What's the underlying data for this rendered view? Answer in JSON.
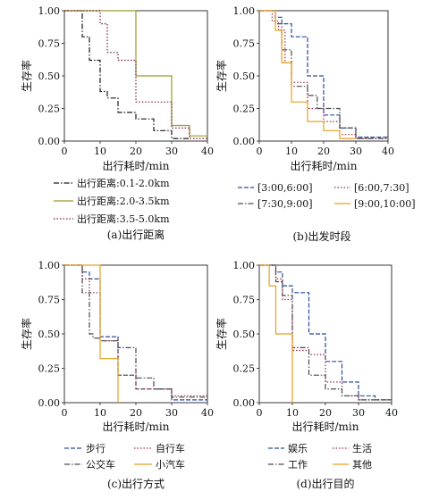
{
  "chart_data": [
    {
      "type": "line",
      "caption": "(a)出行距离",
      "xlabel": "出行耗时/min",
      "ylabel": "生存率",
      "xlim": [
        0,
        40
      ],
      "ylim": [
        0,
        1
      ],
      "xticks": [
        0,
        10,
        20,
        30,
        40
      ],
      "yticks": [
        "0.00",
        "0.25",
        "0.50",
        "0.75",
        "1.00"
      ],
      "legend": "below",
      "series": [
        {
          "name": "出行距离:0.1-2.0km",
          "color": "#1a1a1a",
          "dash": "6,2,1.5,2",
          "points": [
            [
              0,
              1
            ],
            [
              5,
              1
            ],
            [
              5,
              0.8
            ],
            [
              7,
              0.8
            ],
            [
              7,
              0.62
            ],
            [
              10,
              0.62
            ],
            [
              10,
              0.38
            ],
            [
              12,
              0.38
            ],
            [
              12,
              0.33
            ],
            [
              15,
              0.33
            ],
            [
              15,
              0.22
            ],
            [
              20,
              0.22
            ],
            [
              20,
              0.17
            ],
            [
              25,
              0.17
            ],
            [
              25,
              0.08
            ],
            [
              30,
              0.08
            ],
            [
              30,
              0.02
            ],
            [
              35,
              0.02
            ]
          ]
        },
        {
          "name": "出行距离:2.0-3.5km",
          "color": "#9a9a2a",
          "dash": "",
          "points": [
            [
              0,
              1
            ],
            [
              20,
              1
            ],
            [
              20,
              0.5
            ],
            [
              30,
              0.5
            ],
            [
              30,
              0.12
            ],
            [
              35,
              0.12
            ],
            [
              35,
              0.04
            ],
            [
              40,
              0.04
            ]
          ]
        },
        {
          "name": "出行距离:3.5-5.0km",
          "color": "#7a1a3a",
          "dash": "1.5,2",
          "points": [
            [
              0,
              1
            ],
            [
              10,
              1
            ],
            [
              10,
              0.9
            ],
            [
              12,
              0.9
            ],
            [
              12,
              0.68
            ],
            [
              15,
              0.68
            ],
            [
              15,
              0.62
            ],
            [
              20,
              0.62
            ],
            [
              20,
              0.3
            ],
            [
              30,
              0.3
            ],
            [
              30,
              0.1
            ],
            [
              35,
              0.1
            ],
            [
              35,
              0.02
            ],
            [
              40,
              0.02
            ]
          ]
        }
      ]
    },
    {
      "type": "line",
      "caption": "(b)出发时段",
      "xlabel": "出行耗时/min",
      "ylabel": "生存率",
      "xlim": [
        0,
        40
      ],
      "ylim": [
        0,
        1
      ],
      "xticks": [
        0,
        10,
        20,
        30,
        40
      ],
      "yticks": [
        "0.00",
        "0.25",
        "0.50",
        "0.75",
        "1.00"
      ],
      "legend": "below",
      "series": [
        {
          "name": "[3:00,6:00]",
          "color": "#2a4a9a",
          "dash": "5,2",
          "points": [
            [
              0,
              1
            ],
            [
              5,
              1
            ],
            [
              5,
              0.95
            ],
            [
              7,
              0.95
            ],
            [
              7,
              0.9
            ],
            [
              10,
              0.9
            ],
            [
              10,
              0.8
            ],
            [
              15,
              0.8
            ],
            [
              15,
              0.5
            ],
            [
              20,
              0.5
            ],
            [
              20,
              0.2
            ],
            [
              25,
              0.2
            ],
            [
              25,
              0.1
            ],
            [
              30,
              0.1
            ],
            [
              30,
              0.03
            ],
            [
              40,
              0.03
            ]
          ]
        },
        {
          "name": "[6:00,7:30]",
          "color": "#9a2a4a",
          "dash": "1.5,2",
          "points": [
            [
              0,
              1
            ],
            [
              4,
              1
            ],
            [
              4,
              0.92
            ],
            [
              6,
              0.92
            ],
            [
              6,
              0.85
            ],
            [
              8,
              0.85
            ],
            [
              8,
              0.6
            ],
            [
              10,
              0.6
            ],
            [
              10,
              0.45
            ],
            [
              15,
              0.45
            ],
            [
              15,
              0.25
            ],
            [
              20,
              0.25
            ],
            [
              20,
              0.15
            ],
            [
              25,
              0.15
            ],
            [
              25,
              0.05
            ],
            [
              30,
              0.05
            ],
            [
              30,
              0.02
            ],
            [
              40,
              0.02
            ]
          ]
        },
        {
          "name": "[7:30,9:00]",
          "color": "#4a4a4a",
          "dash": "6,2,1.5,2",
          "points": [
            [
              0,
              1
            ],
            [
              5,
              1
            ],
            [
              5,
              0.9
            ],
            [
              7,
              0.9
            ],
            [
              7,
              0.7
            ],
            [
              10,
              0.7
            ],
            [
              10,
              0.42
            ],
            [
              15,
              0.42
            ],
            [
              15,
              0.35
            ],
            [
              18,
              0.35
            ],
            [
              18,
              0.25
            ],
            [
              25,
              0.25
            ],
            [
              25,
              0.1
            ],
            [
              30,
              0.1
            ],
            [
              30,
              0.02
            ],
            [
              40,
              0.02
            ]
          ]
        },
        {
          "name": "[9:00,10:00]",
          "color": "#e8a020",
          "dash": "",
          "points": [
            [
              0,
              1
            ],
            [
              5,
              1
            ],
            [
              5,
              0.85
            ],
            [
              7,
              0.85
            ],
            [
              7,
              0.6
            ],
            [
              10,
              0.6
            ],
            [
              10,
              0.3
            ],
            [
              15,
              0.3
            ],
            [
              15,
              0.15
            ],
            [
              20,
              0.15
            ],
            [
              20,
              0.08
            ],
            [
              25,
              0.08
            ],
            [
              25,
              0.02
            ],
            [
              30,
              0.02
            ]
          ]
        }
      ]
    },
    {
      "type": "line",
      "caption": "(c)出行方式",
      "xlabel": "出行耗时/min",
      "ylabel": "生存率",
      "xlim": [
        0,
        40
      ],
      "ylim": [
        0,
        1
      ],
      "xticks": [
        0,
        10,
        20,
        30,
        40
      ],
      "yticks": [
        "0.00",
        "0.25",
        "0.50",
        "0.75",
        "1.00"
      ],
      "legend": "below",
      "series": [
        {
          "name": "步行",
          "color": "#2a4a9a",
          "dash": "5,2",
          "points": [
            [
              0,
              1
            ],
            [
              5,
              1
            ],
            [
              5,
              0.95
            ],
            [
              7,
              0.95
            ],
            [
              7,
              0.9
            ],
            [
              10,
              0.9
            ],
            [
              10,
              0.48
            ],
            [
              15,
              0.48
            ],
            [
              15,
              0.2
            ],
            [
              20,
              0.2
            ],
            [
              20,
              0.1
            ],
            [
              30,
              0.1
            ],
            [
              30,
              0.02
            ],
            [
              40,
              0.02
            ]
          ]
        },
        {
          "name": "自行车",
          "color": "#9a2a4a",
          "dash": "1.5,2",
          "points": [
            [
              0,
              1
            ],
            [
              5,
              1
            ],
            [
              5,
              0.9
            ],
            [
              7,
              0.9
            ],
            [
              7,
              0.8
            ],
            [
              10,
              0.8
            ],
            [
              10,
              0.45
            ],
            [
              15,
              0.45
            ],
            [
              15,
              0.2
            ],
            [
              20,
              0.2
            ],
            [
              20,
              0.1
            ],
            [
              30,
              0.1
            ],
            [
              30,
              0.05
            ],
            [
              40,
              0.05
            ]
          ]
        },
        {
          "name": "公交车",
          "color": "#4a4a4a",
          "dash": "6,2,1.5,2",
          "points": [
            [
              0,
              1
            ],
            [
              5,
              1
            ],
            [
              5,
              0.8
            ],
            [
              7,
              0.8
            ],
            [
              7,
              0.5
            ],
            [
              8,
              0.5
            ],
            [
              8,
              0.47
            ],
            [
              10,
              0.47
            ],
            [
              10,
              0.45
            ],
            [
              15,
              0.45
            ],
            [
              15,
              0.4
            ],
            [
              20,
              0.4
            ],
            [
              20,
              0.18
            ],
            [
              25,
              0.18
            ],
            [
              25,
              0.1
            ],
            [
              30,
              0.1
            ],
            [
              30,
              0.04
            ],
            [
              40,
              0.04
            ]
          ]
        },
        {
          "name": "小汽车",
          "color": "#e8a020",
          "dash": "",
          "points": [
            [
              0,
              1
            ],
            [
              10,
              1
            ],
            [
              10,
              0.32
            ],
            [
              15,
              0.32
            ],
            [
              15,
              0.0
            ]
          ]
        }
      ]
    },
    {
      "type": "line",
      "caption": "(d)出行目的",
      "xlabel": "出行耗时/min",
      "ylabel": "生存率",
      "xlim": [
        0,
        40
      ],
      "ylim": [
        0,
        1
      ],
      "xticks": [
        0,
        10,
        20,
        30,
        40
      ],
      "yticks": [
        "0.00",
        "0.25",
        "0.50",
        "0.75",
        "1.00"
      ],
      "legend": "below",
      "series": [
        {
          "name": "娱乐",
          "color": "#2a4a9a",
          "dash": "5,2",
          "points": [
            [
              0,
              1
            ],
            [
              5,
              1
            ],
            [
              5,
              0.95
            ],
            [
              7,
              0.95
            ],
            [
              7,
              0.85
            ],
            [
              10,
              0.85
            ],
            [
              10,
              0.8
            ],
            [
              15,
              0.8
            ],
            [
              15,
              0.5
            ],
            [
              20,
              0.5
            ],
            [
              20,
              0.3
            ],
            [
              25,
              0.3
            ],
            [
              25,
              0.15
            ],
            [
              30,
              0.15
            ],
            [
              30,
              0.05
            ],
            [
              35,
              0.05
            ],
            [
              35,
              0.02
            ],
            [
              40,
              0.02
            ]
          ]
        },
        {
          "name": "生活",
          "color": "#9a2a4a",
          "dash": "1.5,2",
          "points": [
            [
              0,
              1
            ],
            [
              5,
              1
            ],
            [
              5,
              0.9
            ],
            [
              7,
              0.9
            ],
            [
              7,
              0.75
            ],
            [
              10,
              0.75
            ],
            [
              10,
              0.38
            ],
            [
              15,
              0.38
            ],
            [
              15,
              0.35
            ],
            [
              20,
              0.35
            ],
            [
              20,
              0.15
            ],
            [
              25,
              0.15
            ],
            [
              25,
              0.05
            ],
            [
              30,
              0.05
            ],
            [
              30,
              0.02
            ],
            [
              40,
              0.02
            ]
          ]
        },
        {
          "name": "工作",
          "color": "#4a4a4a",
          "dash": "6,2,1.5,2",
          "points": [
            [
              0,
              1
            ],
            [
              5,
              1
            ],
            [
              5,
              0.88
            ],
            [
              7,
              0.88
            ],
            [
              7,
              0.78
            ],
            [
              10,
              0.78
            ],
            [
              10,
              0.4
            ],
            [
              15,
              0.4
            ],
            [
              15,
              0.2
            ],
            [
              20,
              0.2
            ],
            [
              20,
              0.1
            ],
            [
              25,
              0.1
            ],
            [
              25,
              0.05
            ],
            [
              30,
              0.05
            ],
            [
              30,
              0.02
            ],
            [
              40,
              0.02
            ]
          ]
        },
        {
          "name": "其他",
          "color": "#e8a020",
          "dash": "",
          "points": [
            [
              0,
              1
            ],
            [
              3,
              1
            ],
            [
              3,
              0.85
            ],
            [
              5,
              0.85
            ],
            [
              5,
              0.5
            ],
            [
              10,
              0.5
            ],
            [
              10,
              0.0
            ]
          ]
        }
      ]
    }
  ]
}
